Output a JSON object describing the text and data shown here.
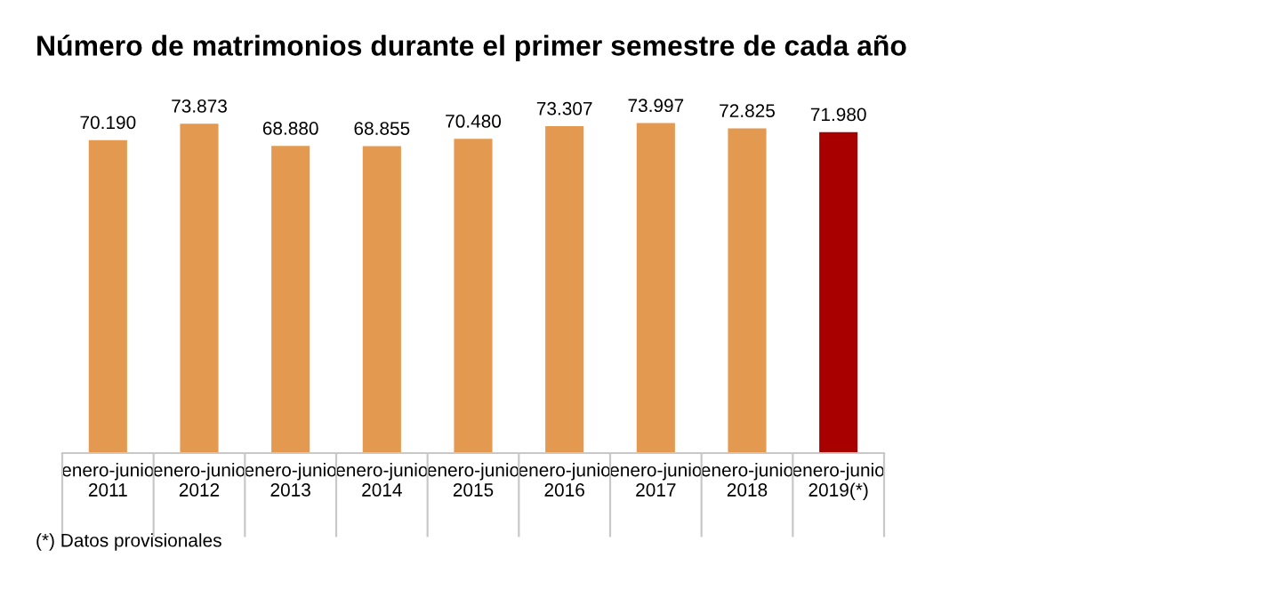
{
  "chart_data": {
    "type": "bar",
    "title": "Número de matrimonios durante el primer semestre de cada año",
    "categories": [
      "enero-junio\n2011",
      "enero-junio\n2012",
      "enero-junio\n2013",
      "enero-junio\n2014",
      "enero-junio\n2015",
      "enero-junio\n2016",
      "enero-junio\n2017",
      "enero-junio\n2018",
      "enero-junio\n2019(*)"
    ],
    "values": [
      70190,
      73873,
      68880,
      68855,
      70480,
      73307,
      73997,
      72825,
      71980
    ],
    "colors": [
      "#e39a50",
      "#e39a50",
      "#e39a50",
      "#e39a50",
      "#e39a50",
      "#e39a50",
      "#e39a50",
      "#e39a50",
      "#a80000"
    ],
    "value_labels": [
      "70.190",
      "73.873",
      "68.880",
      "68.855",
      "70.480",
      "73.307",
      "73.997",
      "72.825",
      "71.980"
    ],
    "annotations": [
      "(*) Datos provisionales"
    ],
    "grid": false,
    "legend": false
  }
}
